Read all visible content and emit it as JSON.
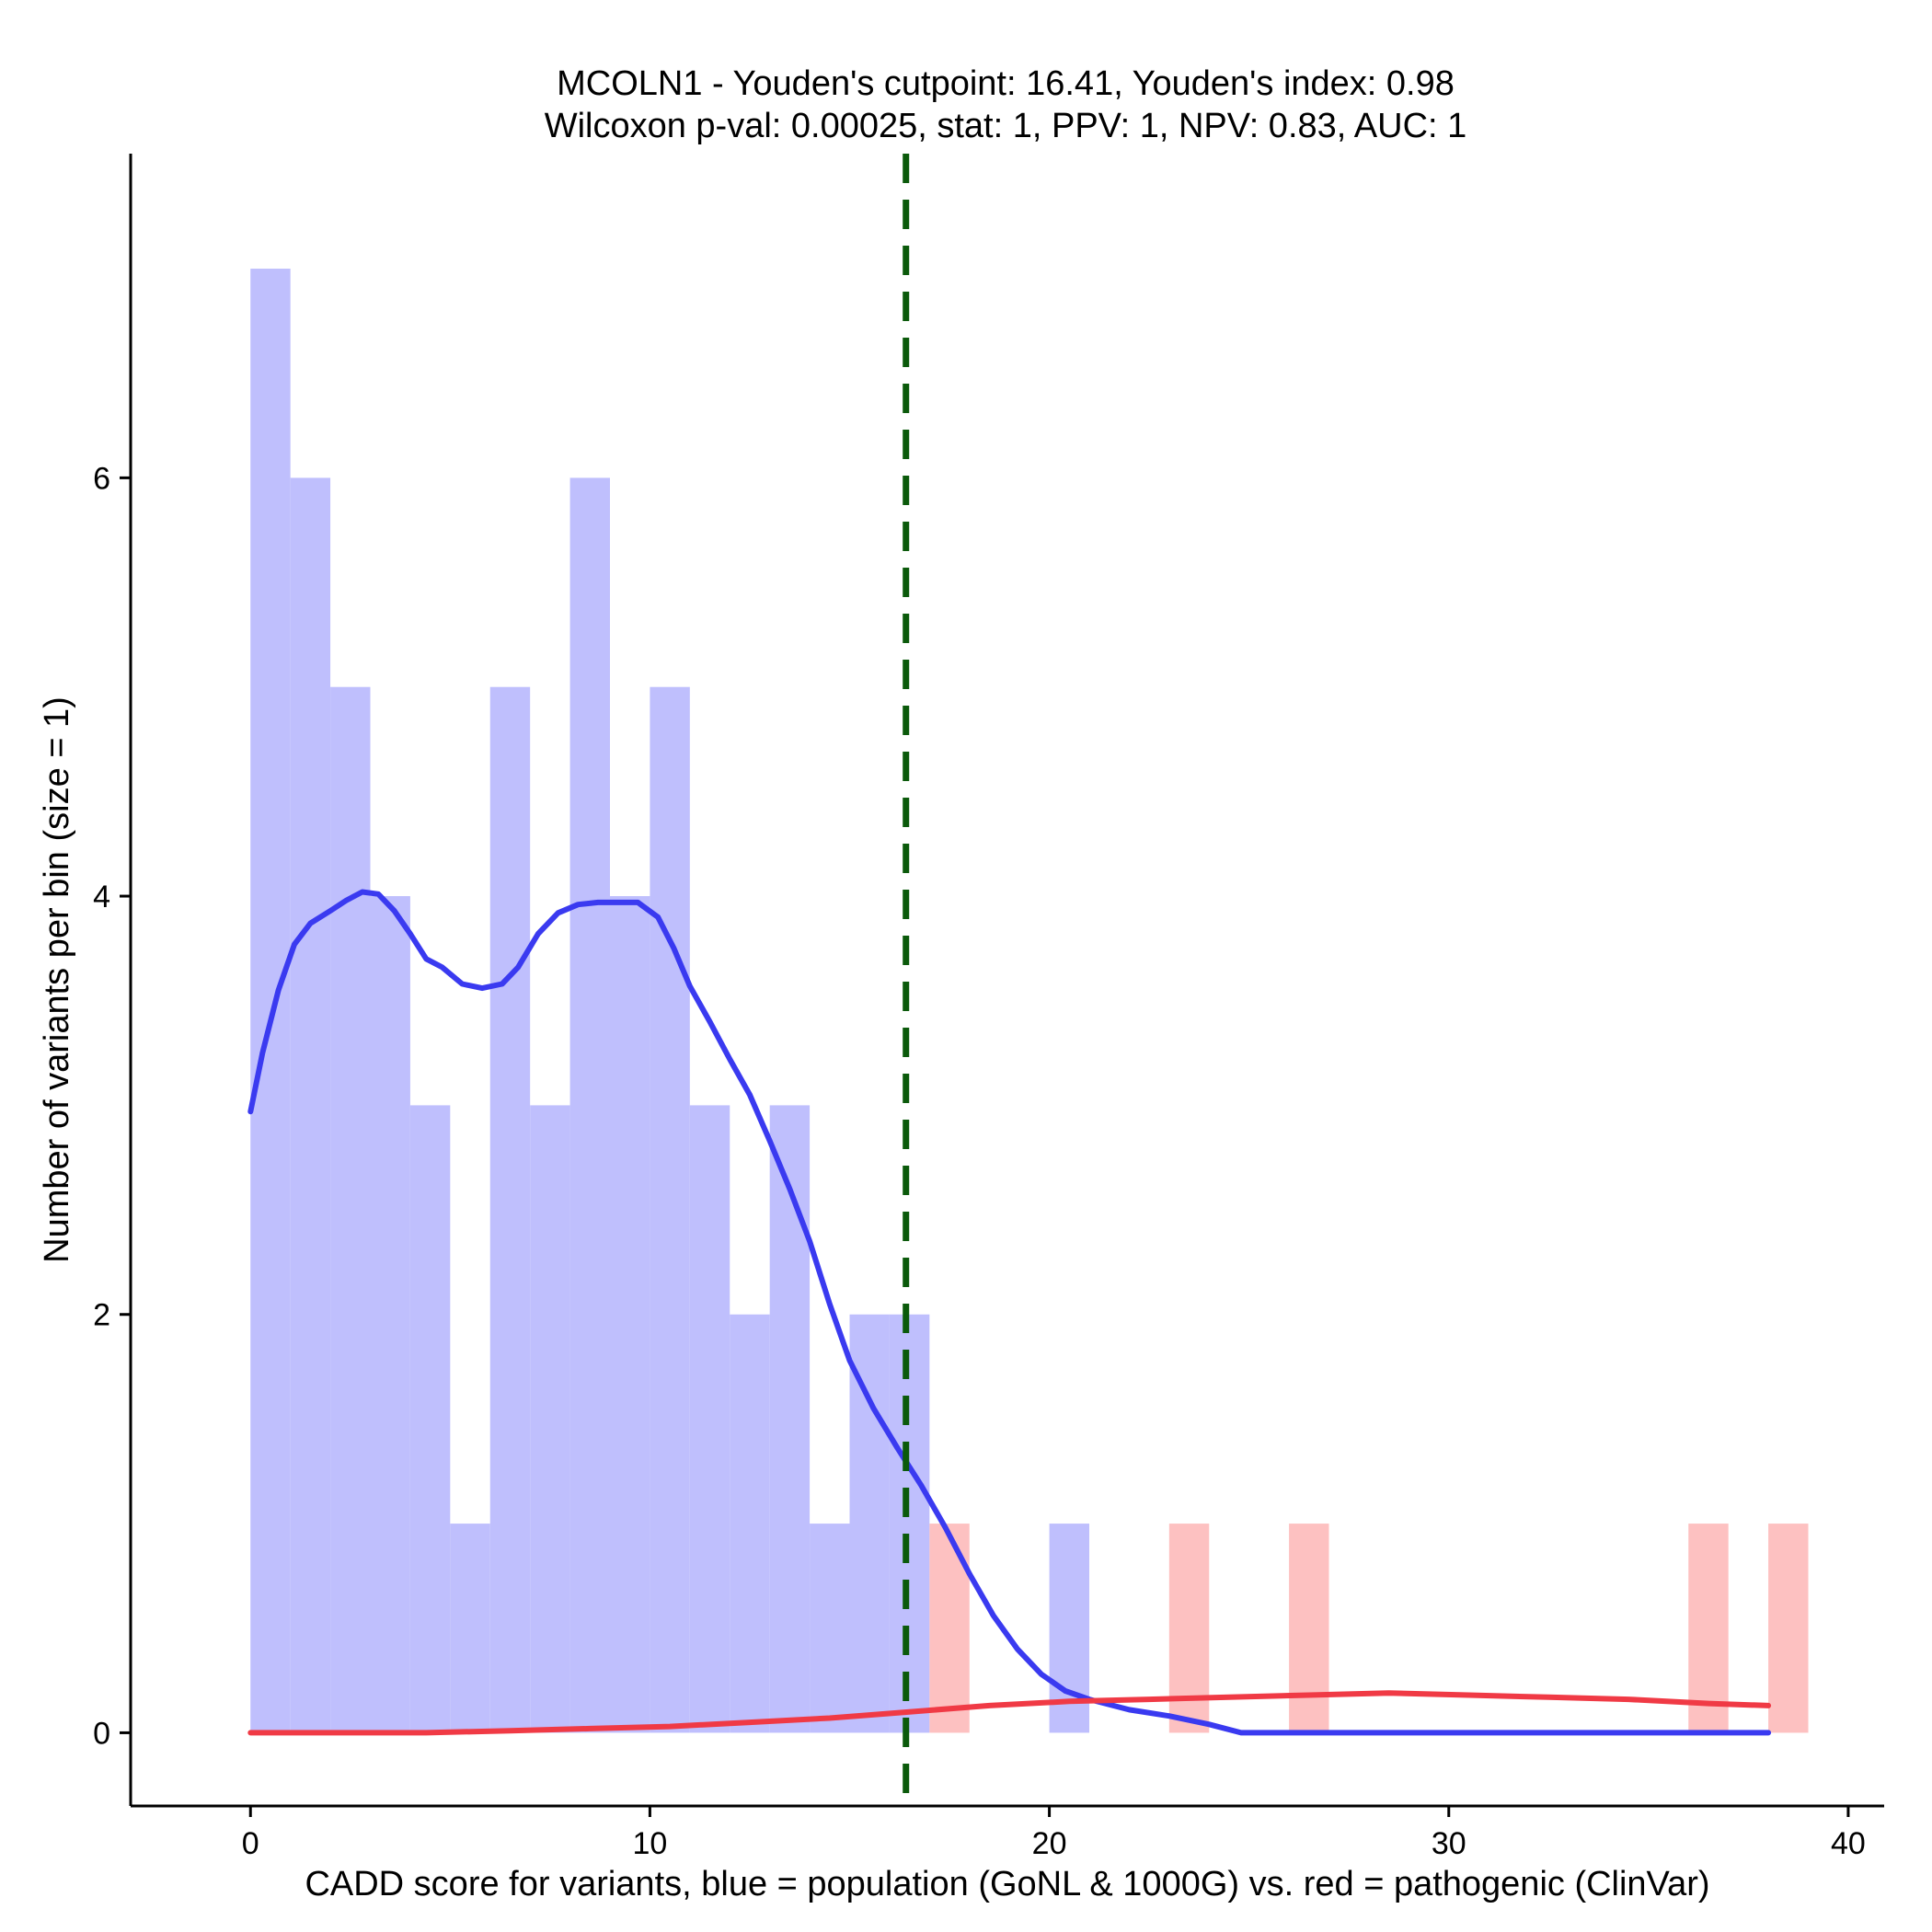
{
  "chart_data": {
    "type": "bar",
    "title_line1": "MCOLN1 - Youden's cutpoint: 16.41, Youden's index: 0.98",
    "title_line2": "Wilcoxon p-val: 0.00025, stat: 1, PPV: 1, NPV: 0.83, AUC: 1",
    "xlabel": "CADD score for variants, blue = population (GoNL & 1000G) vs. red = pathogenic (ClinVar)",
    "ylabel": "Number of variants per bin (size = 1)",
    "xlim": [
      -3,
      40.9
    ],
    "ylim": [
      -0.35,
      7.55
    ],
    "x_ticks": [
      0,
      10,
      20,
      30,
      40
    ],
    "y_ticks": [
      0,
      2,
      4,
      6
    ],
    "bin_size": 1,
    "cutpoint": 16.41,
    "colors": {
      "population_bar": "#bfbffd",
      "pathogenic_bar": "#fdc1c1",
      "population_line": "#3a3af0",
      "pathogenic_line": "#f03a45",
      "cutpoint_line": "#0b5a0b"
    },
    "series": [
      {
        "kind": "histogram",
        "bins": [
          [
            0,
            7
          ],
          [
            1,
            6
          ],
          [
            2,
            5
          ],
          [
            3,
            4
          ],
          [
            4,
            3
          ],
          [
            5,
            1
          ],
          [
            6,
            5
          ],
          [
            7,
            3
          ],
          [
            8,
            6
          ],
          [
            9,
            4
          ],
          [
            10,
            5
          ],
          [
            11,
            3
          ],
          [
            12,
            2
          ],
          [
            13,
            3
          ],
          [
            14,
            1
          ],
          [
            15,
            2
          ],
          [
            16,
            2
          ],
          [
            20,
            1
          ]
        ]
      },
      {
        "kind": "histogram",
        "bins": [
          [
            17,
            1
          ],
          [
            23,
            1
          ],
          [
            26,
            1
          ],
          [
            36,
            1
          ],
          [
            38,
            1
          ]
        ]
      },
      {
        "kind": "density",
        "points": [
          [
            0,
            2.97
          ],
          [
            0.3,
            3.25
          ],
          [
            0.7,
            3.55
          ],
          [
            1.1,
            3.77
          ],
          [
            1.5,
            3.87
          ],
          [
            2,
            3.93
          ],
          [
            2.4,
            3.98
          ],
          [
            2.8,
            4.02
          ],
          [
            3.2,
            4.01
          ],
          [
            3.6,
            3.93
          ],
          [
            4,
            3.82
          ],
          [
            4.4,
            3.7
          ],
          [
            4.8,
            3.66
          ],
          [
            5.3,
            3.58
          ],
          [
            5.8,
            3.56
          ],
          [
            6.3,
            3.58
          ],
          [
            6.7,
            3.66
          ],
          [
            7.2,
            3.82
          ],
          [
            7.7,
            3.92
          ],
          [
            8.2,
            3.96
          ],
          [
            8.7,
            3.97
          ],
          [
            9.2,
            3.97
          ],
          [
            9.7,
            3.97
          ],
          [
            10.2,
            3.9
          ],
          [
            10.6,
            3.75
          ],
          [
            11,
            3.57
          ],
          [
            11.5,
            3.4
          ],
          [
            12,
            3.22
          ],
          [
            12.5,
            3.05
          ],
          [
            13,
            2.83
          ],
          [
            13.5,
            2.6
          ],
          [
            14,
            2.35
          ],
          [
            14.5,
            2.05
          ],
          [
            15,
            1.78
          ],
          [
            15.6,
            1.55
          ],
          [
            16.2,
            1.36
          ],
          [
            16.8,
            1.18
          ],
          [
            17.4,
            0.98
          ],
          [
            18,
            0.76
          ],
          [
            18.6,
            0.56
          ],
          [
            19.2,
            0.4
          ],
          [
            19.8,
            0.28
          ],
          [
            20.4,
            0.2
          ],
          [
            21,
            0.16
          ],
          [
            22,
            0.11
          ],
          [
            23,
            0.08
          ],
          [
            24,
            0.04
          ],
          [
            24.8,
            0
          ],
          [
            30,
            0
          ],
          [
            38,
            0
          ]
        ]
      },
      {
        "kind": "density",
        "points": [
          [
            0,
            0
          ],
          [
            2,
            0
          ],
          [
            4.4,
            0
          ],
          [
            6.5,
            0.01
          ],
          [
            8.5,
            0.02
          ],
          [
            10.5,
            0.03
          ],
          [
            12.5,
            0.05
          ],
          [
            14.5,
            0.07
          ],
          [
            16.5,
            0.1
          ],
          [
            18.5,
            0.13
          ],
          [
            20.5,
            0.15
          ],
          [
            22.5,
            0.16
          ],
          [
            24.5,
            0.17
          ],
          [
            26.5,
            0.18
          ],
          [
            28.5,
            0.19
          ],
          [
            30.5,
            0.18
          ],
          [
            32.5,
            0.17
          ],
          [
            34.5,
            0.16
          ],
          [
            36.5,
            0.14
          ],
          [
            38,
            0.13
          ]
        ]
      }
    ]
  }
}
